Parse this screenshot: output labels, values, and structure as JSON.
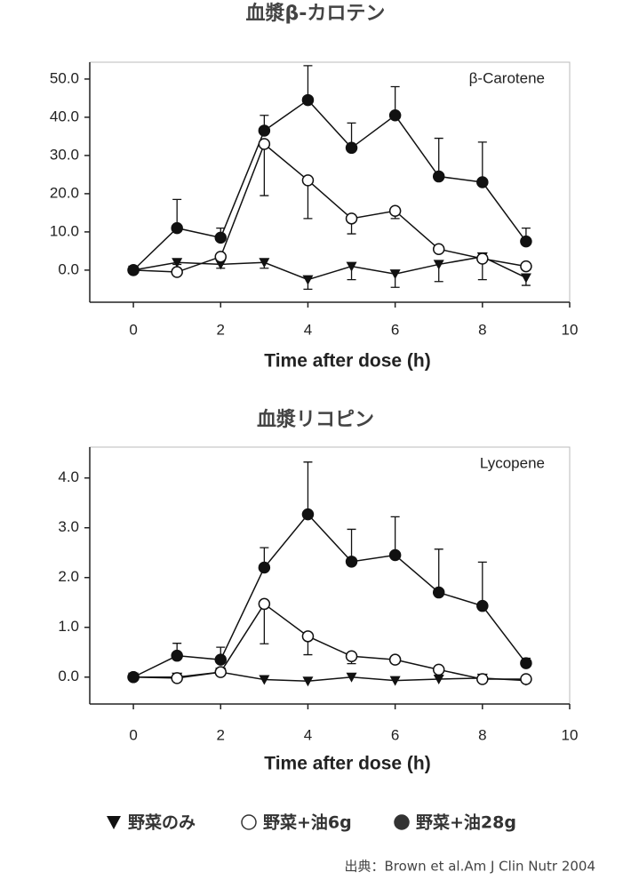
{
  "chart_data": [
    {
      "type": "line",
      "title": "血漿β-カロテン",
      "annotation": "β-Carotene",
      "xlabel": "Time after dose (h)",
      "x": [
        0,
        1,
        2,
        3,
        4,
        5,
        6,
        7,
        8,
        9
      ],
      "xlim": [
        -1,
        10
      ],
      "xticks": [
        0,
        2,
        4,
        6,
        8,
        10
      ],
      "ylim": [
        -8.4,
        54.4
      ],
      "yticks": [
        {
          "value": 0,
          "label": "0.0"
        },
        {
          "value": 10,
          "label": "10.0"
        },
        {
          "value": 20,
          "label": "20.0"
        },
        {
          "value": 30,
          "label": "30.0"
        },
        {
          "value": 40,
          "label": "40.0"
        },
        {
          "value": 50,
          "label": "50.0"
        }
      ],
      "series": [
        {
          "name": "野菜のみ",
          "color": "#111111",
          "marker": "triangle-down",
          "error_side": "down",
          "values": [
            0,
            2.0,
            1.5,
            2.0,
            -2.5,
            1.0,
            -1.0,
            1.5,
            3.5,
            -2.0
          ],
          "errors": [
            0,
            0.5,
            1,
            1.5,
            2.5,
            3.5,
            3.5,
            4.5,
            6,
            2
          ]
        },
        {
          "name": "野菜+油6g",
          "color": "#111111",
          "marker": "circle-open",
          "error_side": "down",
          "values": [
            0,
            -0.5,
            3.5,
            33,
            23.5,
            13.5,
            15.5,
            5.5,
            3.0,
            1.0
          ],
          "errors": [
            0,
            0,
            0,
            13.5,
            10,
            4,
            2,
            0,
            0,
            0
          ]
        },
        {
          "name": "野菜+油28g",
          "color": "#111111",
          "marker": "circle",
          "error_side": "up",
          "values": [
            0,
            11,
            8.5,
            36.5,
            44.5,
            32,
            40.5,
            24.5,
            23,
            7.5
          ],
          "errors": [
            0,
            7.5,
            2.5,
            4,
            9,
            6.5,
            7.5,
            10,
            10.5,
            3.5
          ]
        }
      ]
    },
    {
      "type": "line",
      "title": "血漿リコピン",
      "annotation": "Lycopene",
      "xlabel": "Time after dose (h)",
      "x": [
        0,
        1,
        2,
        3,
        4,
        5,
        6,
        7,
        8,
        9
      ],
      "xlim": [
        -1,
        10
      ],
      "xticks": [
        0,
        2,
        4,
        6,
        8,
        10
      ],
      "ylim": [
        -0.54,
        4.62
      ],
      "yticks": [
        {
          "value": 0,
          "label": "0.0"
        },
        {
          "value": 1,
          "label": "1.0"
        },
        {
          "value": 2,
          "label": "2.0"
        },
        {
          "value": 3,
          "label": "3.0"
        },
        {
          "value": 4,
          "label": "4.0"
        }
      ],
      "series": [
        {
          "color": "#111111",
          "marker": "triangle-down",
          "error_side": "down",
          "values": [
            0,
            0,
            0.1,
            -0.05,
            -0.08,
            0,
            -0.07,
            -0.04,
            -0.02,
            -0.07
          ],
          "errors": [
            0,
            0,
            0,
            0,
            0,
            0,
            0,
            0,
            0,
            0
          ]
        },
        {
          "color": "#111111",
          "marker": "circle-open",
          "error_side": "down",
          "values": [
            0,
            -0.02,
            0.1,
            1.47,
            0.82,
            0.42,
            0.35,
            0.15,
            -0.04,
            -0.04
          ],
          "errors": [
            0,
            0,
            0,
            0.8,
            0.37,
            0.15,
            0.07,
            0,
            0,
            0
          ]
        },
        {
          "color": "#111111",
          "marker": "circle",
          "error_side": "up",
          "values": [
            0,
            0.43,
            0.35,
            2.2,
            3.27,
            2.32,
            2.45,
            1.7,
            1.43,
            0.28
          ],
          "errors": [
            0,
            0.25,
            0.25,
            0.4,
            1.05,
            0.65,
            0.77,
            0.87,
            0.88,
            0.1
          ]
        }
      ]
    }
  ],
  "source": "出典：Brown et al.Am J Clin Nutr 2004"
}
